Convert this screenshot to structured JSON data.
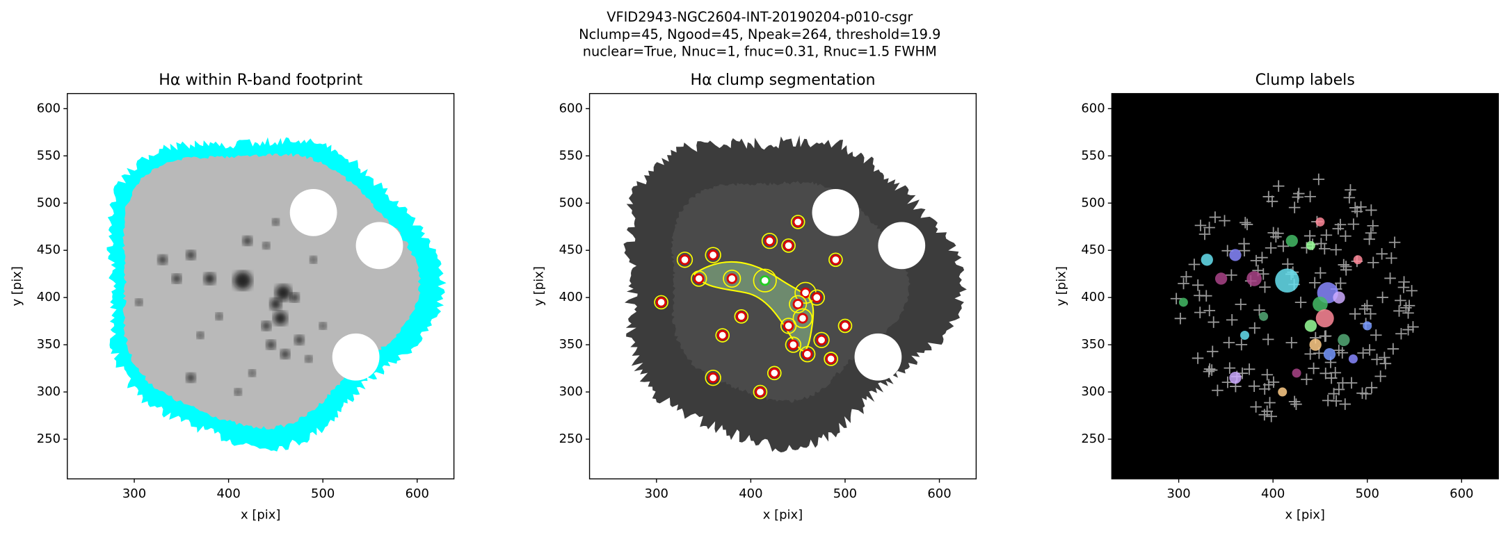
{
  "suptitle": [
    "VFID2943-NGC2604-INT-20190204-p010-csgr",
    "Nclump=45, Ngood=45, Npeak=264, threshold=19.9",
    "nuclear=True, Nnuc=1, fnuc=0.31, Rnuc=1.5 FWHM"
  ],
  "chart_data": [
    {
      "type": "image",
      "title": "Hα within R-band footprint",
      "xlabel": "x [pix]",
      "ylabel": "y [pix]",
      "xlim": [
        229,
        639
      ],
      "ylim": [
        208,
        616
      ],
      "xticks": [
        300,
        400,
        500,
        600
      ],
      "yticks": [
        250,
        300,
        350,
        400,
        450,
        500,
        550,
        600
      ],
      "background": "#ffffff"
    },
    {
      "type": "image",
      "title": "Hα clump segmentation",
      "xlabel": "x [pix]",
      "ylabel": "y [pix]",
      "xlim": [
        229,
        639
      ],
      "ylim": [
        208,
        616
      ],
      "xticks": [
        300,
        400,
        500,
        600
      ],
      "yticks": [
        250,
        300,
        350,
        400,
        450,
        500,
        550,
        600
      ],
      "background": "#ffffff"
    },
    {
      "type": "image",
      "title": "Clump labels",
      "xlabel": "x [pix]",
      "ylabel": "y [pix]",
      "xlim": [
        229,
        639
      ],
      "ylim": [
        208,
        616
      ],
      "xticks": [
        300,
        400,
        500,
        600
      ],
      "yticks": [
        250,
        300,
        350,
        400,
        450,
        500,
        550,
        600
      ],
      "background": "#000000"
    }
  ]
}
